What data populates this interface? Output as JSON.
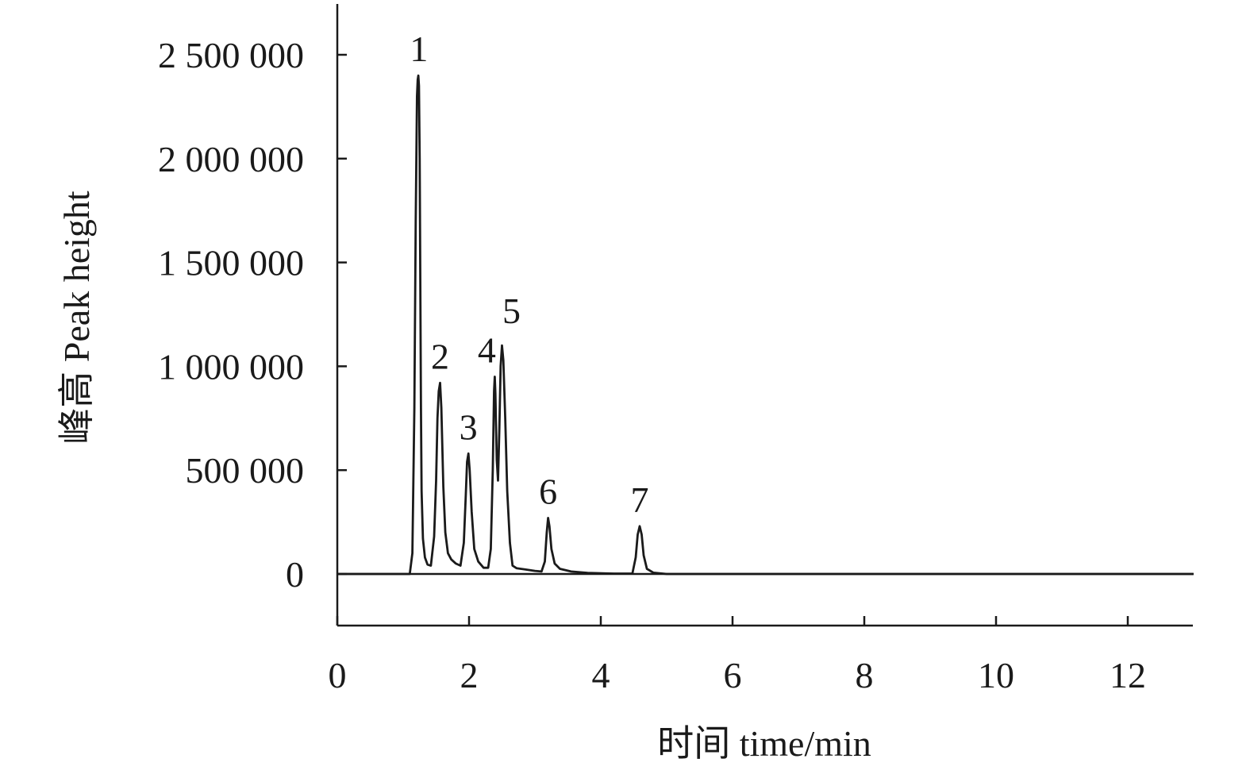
{
  "chart_data": {
    "type": "line",
    "title": "",
    "xlabel": "时间 time/min",
    "ylabel": "峰高 Peak height",
    "xlim": [
      0,
      13
    ],
    "ylim": [
      -250000,
      2500000
    ],
    "xticks": [
      0,
      2,
      4,
      6,
      8,
      10,
      12
    ],
    "xtick_labels": [
      "0",
      "2",
      "4",
      "6",
      "8",
      "10",
      "12"
    ],
    "yticks": [
      0,
      500000,
      1000000,
      1500000,
      2000000,
      2500000
    ],
    "ytick_labels": [
      "0",
      "500 000",
      "1 000 000",
      "1 500 000",
      "2 000 000",
      "2 500 000"
    ],
    "grid": false,
    "line_color": "#1a1a1a",
    "peaks": [
      {
        "label": "1",
        "x": 1.24,
        "y": 2400000
      },
      {
        "label": "2",
        "x": 1.56,
        "y": 920000
      },
      {
        "label": "3",
        "x": 1.99,
        "y": 580000
      },
      {
        "label": "4",
        "x": 2.39,
        "y": 950000
      },
      {
        "label": "5",
        "x": 2.5,
        "y": 1100000
      },
      {
        "label": "6",
        "x": 3.2,
        "y": 270000
      },
      {
        "label": "7",
        "x": 4.59,
        "y": 230000
      }
    ],
    "series": [
      {
        "x": [
          0,
          1.1,
          1.14,
          1.17,
          1.19,
          1.21,
          1.22,
          1.23,
          1.24,
          1.25,
          1.26,
          1.27,
          1.28,
          1.3,
          1.33,
          1.37,
          1.42,
          1.47,
          1.5,
          1.52,
          1.54,
          1.56,
          1.58,
          1.61,
          1.64,
          1.68,
          1.73,
          1.8,
          1.87,
          1.92,
          1.95,
          1.97,
          1.99,
          2.01,
          2.04,
          2.08,
          2.14,
          2.22,
          2.29,
          2.33,
          2.36,
          2.38,
          2.39,
          2.4,
          2.42,
          2.44,
          2.46,
          2.48,
          2.5,
          2.52,
          2.55,
          2.58,
          2.62,
          2.66,
          2.72,
          2.85,
          3.0,
          3.1,
          3.15,
          3.18,
          3.2,
          3.22,
          3.25,
          3.3,
          3.38,
          3.55,
          3.8,
          4.2,
          4.48,
          4.53,
          4.56,
          4.59,
          4.62,
          4.65,
          4.7,
          4.8,
          5.0,
          13.0
        ],
        "y": [
          0,
          0,
          100000,
          800000,
          1700000,
          2300000,
          2380000,
          2400000,
          2350000,
          2000000,
          1400000,
          800000,
          400000,
          170000,
          80000,
          45000,
          40000,
          180000,
          450000,
          750000,
          880000,
          920000,
          800000,
          420000,
          200000,
          100000,
          70000,
          50000,
          40000,
          150000,
          380000,
          540000,
          580000,
          500000,
          300000,
          120000,
          60000,
          30000,
          30000,
          120000,
          500000,
          880000,
          950000,
          870000,
          550000,
          450000,
          700000,
          1000000,
          1100000,
          1030000,
          750000,
          400000,
          150000,
          40000,
          28000,
          22000,
          15000,
          12000,
          60000,
          200000,
          270000,
          230000,
          120000,
          50000,
          25000,
          12000,
          5000,
          2000,
          2000,
          80000,
          190000,
          230000,
          190000,
          90000,
          25000,
          6000,
          0,
          0
        ]
      }
    ]
  }
}
